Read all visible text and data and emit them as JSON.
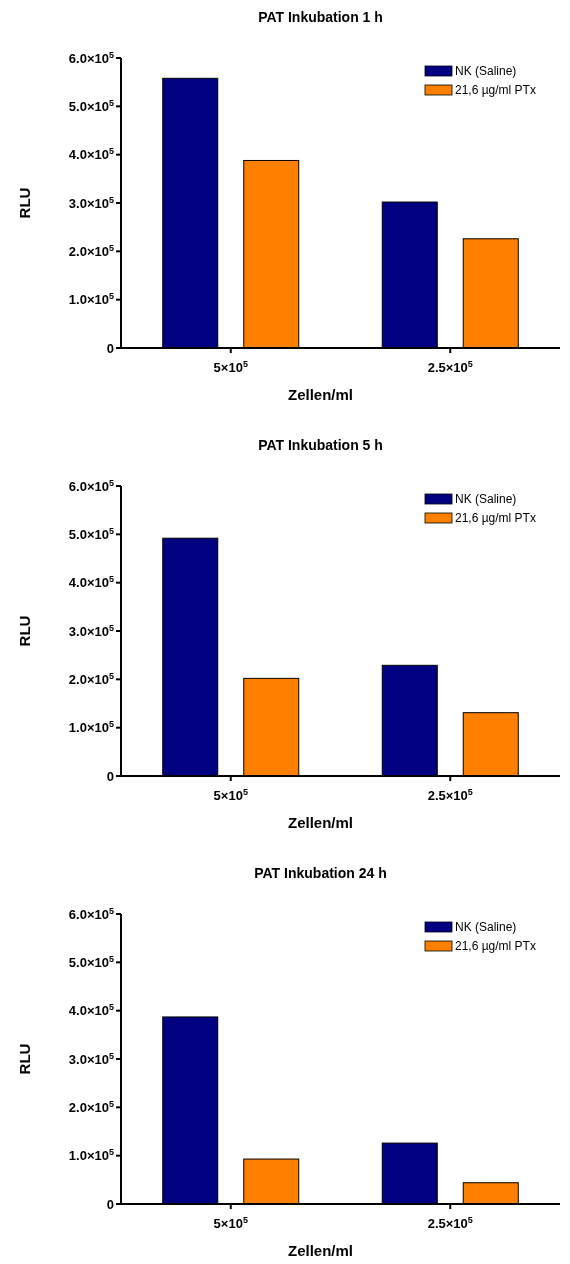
{
  "chart_data": [
    {
      "type": "bar",
      "title": "PAT Inkubation 1 h",
      "xlabel": "Zellen/ml",
      "ylabel": "RLU",
      "categories": [
        "5×10$^{5}$",
        "2.5×10$^{5}$"
      ],
      "series": [
        {
          "name": "NK (Saline)",
          "color": "#000080",
          "values": [
            558000,
            302000
          ]
        },
        {
          "name": "21,6 µg/ml PTx",
          "color": "#ff8000",
          "values": [
            388000,
            226000
          ]
        }
      ],
      "ylim": [
        0,
        600000
      ],
      "yticks": [
        {
          "value": 0,
          "label": "0"
        },
        {
          "value": 100000,
          "label": "1.0×10$^{5}$"
        },
        {
          "value": 200000,
          "label": "2.0×10$^{5}$"
        },
        {
          "value": 300000,
          "label": "3.0×10$^{5}$"
        },
        {
          "value": 400000,
          "label": "4.0×10$^{5}$"
        },
        {
          "value": 500000,
          "label": "5.0×10$^{5}$"
        },
        {
          "value": 600000,
          "label": "6.0×10$^{5}$"
        }
      ],
      "legend": "top right",
      "grid": false
    },
    {
      "type": "bar",
      "title": "PAT Inkubation 5 h",
      "xlabel": "Zellen/ml",
      "ylabel": "RLU",
      "categories": [
        "5×10$^{5}$",
        "2.5×10$^{5}$"
      ],
      "series": [
        {
          "name": "NK (Saline)",
          "color": "#000080",
          "values": [
            492000,
            229000
          ]
        },
        {
          "name": "21,6 µg/ml PTx",
          "color": "#ff8000",
          "values": [
            202000,
            131000
          ]
        }
      ],
      "ylim": [
        0,
        600000
      ],
      "yticks": [
        {
          "value": 0,
          "label": "0"
        },
        {
          "value": 100000,
          "label": "1.0×10$^{5}$"
        },
        {
          "value": 200000,
          "label": "2.0×10$^{5}$"
        },
        {
          "value": 300000,
          "label": "3.0×10$^{5}$"
        },
        {
          "value": 400000,
          "label": "4.0×10$^{5}$"
        },
        {
          "value": 500000,
          "label": "5.0×10$^{5}$"
        },
        {
          "value": 600000,
          "label": "6.0×10$^{5}$"
        }
      ],
      "legend": "top right",
      "grid": false
    },
    {
      "type": "bar",
      "title": "PAT Inkubation 24 h",
      "xlabel": "Zellen/ml",
      "ylabel": "RLU",
      "categories": [
        "5×10$^{5}$",
        "2.5×10$^{5}$"
      ],
      "series": [
        {
          "name": "NK (Saline)",
          "color": "#000080",
          "values": [
            387000,
            126000
          ]
        },
        {
          "name": "21,6 µg/ml PTx",
          "color": "#ff8000",
          "values": [
            93000,
            44000
          ]
        }
      ],
      "ylim": [
        0,
        600000
      ],
      "yticks": [
        {
          "value": 0,
          "label": "0"
        },
        {
          "value": 100000,
          "label": "1.0×10$^{5}$"
        },
        {
          "value": 200000,
          "label": "2.0×10$^{5}$"
        },
        {
          "value": 300000,
          "label": "3.0×10$^{5}$"
        },
        {
          "value": 400000,
          "label": "4.0×10$^{5}$"
        },
        {
          "value": 500000,
          "label": "5.0×10$^{5}$"
        },
        {
          "value": 600000,
          "label": "6.0×10$^{5}$"
        }
      ],
      "legend": "top right",
      "grid": false
    }
  ]
}
